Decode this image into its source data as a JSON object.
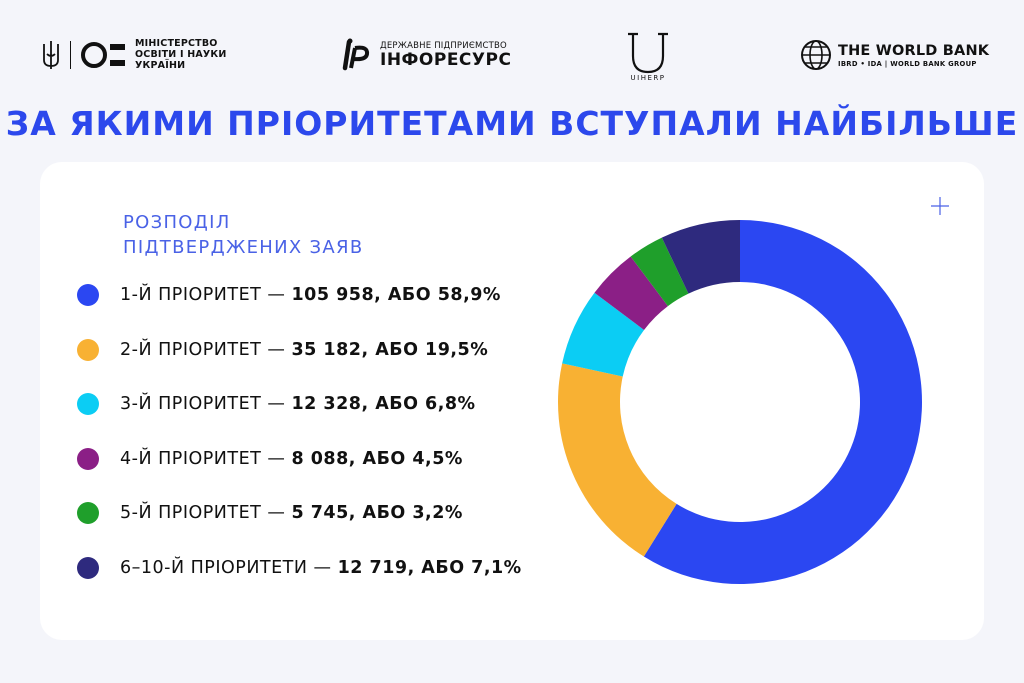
{
  "header": {
    "mon_lines": [
      "МІНІСТЕРСТВО",
      "ОСВІТИ І НАУКИ",
      "УКРАЇНИ"
    ],
    "inforesurs_small": "ДЕРЖАВНЕ ПІДПРИЄМСТВО",
    "inforesurs_big": "ІНФОРЕСУРС",
    "uc_text": "UIHERP",
    "worldbank_title": "THE WORLD BANK",
    "worldbank_sub": "IBRD • IDA | WORLD BANK GROUP",
    "icons": [
      "trident-icon",
      "mon-logo-icon",
      "inforesurs-logo-icon",
      "uc-logo-icon",
      "globe-icon"
    ]
  },
  "title": "ЗА ЯКИМИ ПРІОРИТЕТАМИ ВСТУПАЛИ НАЙБІЛЬШЕ",
  "card": {
    "subtitle_lines": [
      "РОЗПОДІЛ",
      "ПІДТВЕРДЖЕНИХ ЗАЯВ"
    ],
    "corner_icon": "plus-icon"
  },
  "chart_data": {
    "type": "pie",
    "donut": true,
    "title": "РОЗПОДІЛ ПІДТВЕРДЖЕНИХ ЗАЯВ",
    "legend_position": "left",
    "slices": [
      {
        "label": "1-Й ПРІОРИТЕТ",
        "value": 105958,
        "value_text": "105 958, АБО 58,9%",
        "percent": 58.9,
        "color": "#2b47f2"
      },
      {
        "label": "2-Й ПРІОРИТЕТ",
        "value": 35182,
        "value_text": "35 182, АБО 19,5%",
        "percent": 19.5,
        "color": "#f8b133"
      },
      {
        "label": "3-Й ПРІОРИТЕТ",
        "value": 12328,
        "value_text": "12 328, АБО 6,8%",
        "percent": 6.8,
        "color": "#0bcdf4"
      },
      {
        "label": "4-Й ПРІОРИТЕТ",
        "value": 8088,
        "value_text": "8 088, АБО 4,5%",
        "percent": 4.5,
        "color": "#8b1f86"
      },
      {
        "label": "5-Й ПРІОРИТЕТ",
        "value": 5745,
        "value_text": "5 745, АБО 3,2%",
        "percent": 3.2,
        "color": "#1f9f2b"
      },
      {
        "label": "6–10-Й ПРІОРИТЕТИ",
        "value": 12719,
        "value_text": "12 719, АБО 7,1%",
        "percent": 7.1,
        "color": "#2e2a7e"
      }
    ]
  }
}
